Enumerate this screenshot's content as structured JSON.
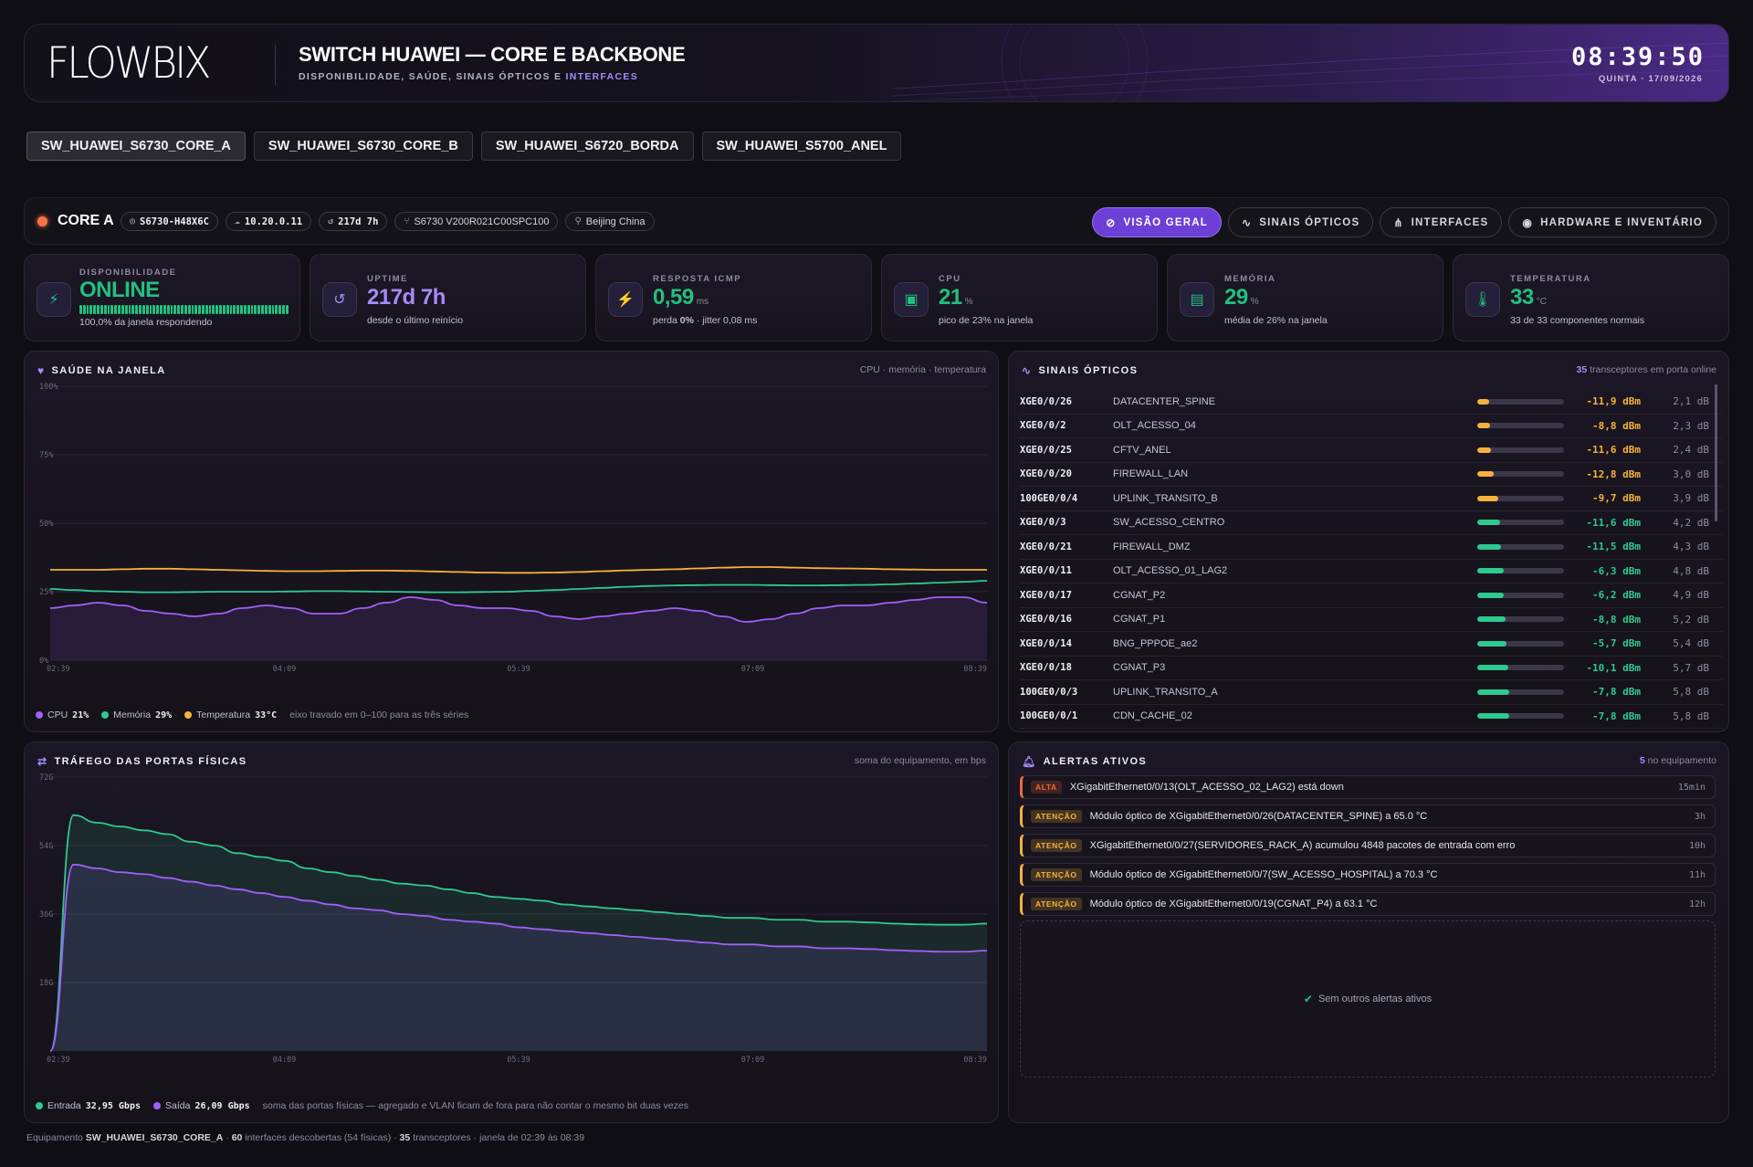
{
  "header": {
    "logo": "FLOWBIX",
    "title": "SWITCH HUAWEI — CORE E BACKBONE",
    "subtitle_prefix": "DISPONIBILIDADE, SAÚDE, SINAIS ÓPTICOS E",
    "subtitle_accent": "INTERFACES",
    "clock": "08:39:50",
    "date": "QUINTA · 17/09/2026"
  },
  "device_tabs": [
    {
      "label": "SW_HUAWEI_S6730_CORE_A",
      "active": true
    },
    {
      "label": "SW_HUAWEI_S6730_CORE_B"
    },
    {
      "label": "SW_HUAWEI_S6720_BORDA"
    },
    {
      "label": "SW_HUAWEI_S5700_ANEL"
    }
  ],
  "device": {
    "name": "CORE A",
    "status_color": "#f97345",
    "model": "S6730-H48X6C",
    "ip": "10.20.0.11",
    "uptime_chip": "217d 7h",
    "firmware": "S6730 V200R021C00SPC100",
    "location": "Beijing China"
  },
  "view_tabs": [
    {
      "label": "VISÃO GERAL",
      "icon": "gauge-icon",
      "active": true
    },
    {
      "label": "SINAIS ÓPTICOS",
      "icon": "pulse-icon"
    },
    {
      "label": "INTERFACES",
      "icon": "network-icon"
    },
    {
      "label": "HARDWARE E INVENTÁRIO",
      "icon": "chip-icon"
    }
  ],
  "kpis": [
    {
      "label": "DISPONIBILIDADE",
      "value": "ONLINE",
      "unit": "",
      "sub": "100,0% da janela respondendo",
      "icon": "plug-icon",
      "color": "#22c07f",
      "availability_fraction": 1.0
    },
    {
      "label": "UPTIME",
      "value": "217d 7h",
      "unit": "",
      "sub": "desde o último reinício",
      "icon": "history-icon",
      "color": "#a78bfa"
    },
    {
      "label": "RESPOSTA ICMP",
      "value": "0,59",
      "unit": "ms",
      "sub_prefix": "perda",
      "sub_bold": "0%",
      "sub": " · jitter 0,08 ms",
      "icon": "bolt-icon",
      "color": "#22c07f"
    },
    {
      "label": "CPU",
      "value": "21",
      "unit": "%",
      "sub": "pico de 23% na janela",
      "icon": "cpu-icon",
      "color": "#22c07f"
    },
    {
      "label": "MEMÓRIA",
      "value": "29",
      "unit": "%",
      "sub": "média de 26% na janela",
      "icon": "memory-icon",
      "color": "#22c07f"
    },
    {
      "label": "TEMPERATURA",
      "value": "33",
      "unit": "°C",
      "sub": "33 de 33 componentes normais",
      "icon": "thermometer-icon",
      "color": "#22c07f"
    }
  ],
  "health_panel": {
    "title": "SAÚDE NA JANELA",
    "right": "CPU · memória · temperatura",
    "legend": [
      {
        "name": "CPU",
        "value": "21%",
        "color": "#a060f8"
      },
      {
        "name": "Memória",
        "value": "29%",
        "color": "#2ec98f"
      },
      {
        "name": "Temperatura",
        "value": "33°C",
        "color": "#f6b23c"
      }
    ],
    "note": "eixo travado em 0–100 para as três séries"
  },
  "traffic_panel": {
    "title": "TRÁFEGO DAS PORTAS FÍSICAS",
    "right": "soma do equipamento, em bps",
    "legend": [
      {
        "name": "Entrada",
        "value": "32,95 Gbps",
        "color": "#2ec98f"
      },
      {
        "name": "Saída",
        "value": "26,09 Gbps",
        "color": "#a060f8"
      }
    ],
    "note": "soma das portas físicas — agregado e VLAN ficam de fora para não contar o mesmo bit duas vezes"
  },
  "chart_data": [
    {
      "type": "line",
      "title": "SAÚDE NA JANELA",
      "x_ticks": [
        "02:39",
        "04:09",
        "05:39",
        "07:09",
        "08:39"
      ],
      "y_ticks": [
        "100%",
        "75%",
        "50%",
        "25%",
        "0%"
      ],
      "ylim": [
        0,
        100
      ],
      "grid": true,
      "series": [
        {
          "name": "CPU",
          "color": "#a060f8",
          "area": true,
          "values": [
            19,
            20,
            21,
            20,
            18,
            17,
            16,
            17,
            19,
            20,
            19,
            17,
            17,
            19,
            21,
            23,
            22,
            20,
            19,
            19,
            18,
            16,
            15,
            16,
            17,
            18,
            19,
            18,
            16,
            14,
            15,
            17,
            19,
            20,
            20,
            21,
            22,
            23,
            23,
            21
          ]
        },
        {
          "name": "Memória",
          "color": "#2ec98f",
          "area": false,
          "values": [
            26,
            25.6,
            25.2,
            25,
            24.8,
            24.8,
            24.9,
            25,
            25,
            25,
            25.1,
            25.2,
            25.2,
            25.1,
            25,
            24.9,
            24.8,
            24.8,
            24.9,
            25,
            25.3,
            25.6,
            26,
            26.4,
            26.8,
            27.1,
            27.3,
            27.4,
            27.5,
            27.5,
            27.4,
            27.3,
            27.3,
            27.4,
            27.5,
            27.7,
            28,
            28.3,
            28.6,
            29
          ]
        },
        {
          "name": "Temperatura",
          "color": "#f6b23c",
          "area": false,
          "values": [
            33,
            33,
            33,
            33.2,
            33.4,
            33.4,
            33.2,
            33,
            32.8,
            32.6,
            32.5,
            32.5,
            32.6,
            32.7,
            32.7,
            32.6,
            32.4,
            32.2,
            32,
            31.9,
            31.9,
            32,
            32.2,
            32.5,
            32.8,
            33,
            33.2,
            33.5,
            33.8,
            34,
            34,
            33.8,
            33.6,
            33.5,
            33.4,
            33.2,
            33.1,
            33,
            33,
            33
          ]
        }
      ]
    },
    {
      "type": "area",
      "title": "TRÁFEGO DAS PORTAS FÍSICAS",
      "x_ticks": [
        "02:39",
        "04:09",
        "05:39",
        "07:09",
        "08:39"
      ],
      "y_ticks": [
        "72G",
        "54G",
        "36G",
        "18G"
      ],
      "ylim": [
        0,
        72
      ],
      "grid": true,
      "series": [
        {
          "name": "Entrada",
          "color": "#2ec98f",
          "values": [
            0,
            62,
            60,
            59,
            58,
            57,
            55,
            54,
            52,
            51,
            50,
            48,
            47,
            46,
            45,
            44,
            43.5,
            42.5,
            41.5,
            40.5,
            40,
            39.5,
            38.5,
            38,
            37.5,
            37,
            36.5,
            36,
            35.5,
            35,
            35,
            34.5,
            34.5,
            34,
            34,
            33.8,
            33.5,
            33.3,
            33.2,
            33.2,
            33.5
          ]
        },
        {
          "name": "Saída",
          "color": "#a060f8",
          "values": [
            0,
            49,
            48,
            47,
            46.5,
            45.5,
            44.5,
            43.5,
            42.5,
            41.5,
            40.5,
            39.5,
            38.5,
            37.5,
            37,
            36,
            35.5,
            34.5,
            34,
            33.5,
            32.5,
            32,
            31.5,
            31,
            30.5,
            30,
            29.5,
            29,
            28.5,
            28,
            28,
            27.5,
            27.5,
            27,
            27,
            26.8,
            26.5,
            26.3,
            26.1,
            26.1,
            26.4
          ]
        }
      ]
    }
  ],
  "optical_panel": {
    "title": "SINAIS ÓPTICOS",
    "count": "35",
    "count_suffix": " transceptores em porta online",
    "rows": [
      {
        "port": "XGE0/0/26",
        "desc": "DATACENTER_SPINE",
        "dbm": "-11,9 dBm",
        "db": "2,1 dB",
        "level": 0.14,
        "status": "warn"
      },
      {
        "port": "XGE0/0/2",
        "desc": "OLT_ACESSO_04",
        "dbm": "-8,8 dBm",
        "db": "2,3 dB",
        "level": 0.15,
        "status": "warn"
      },
      {
        "port": "XGE0/0/25",
        "desc": "CFTV_ANEL",
        "dbm": "-11,6 dBm",
        "db": "2,4 dB",
        "level": 0.16,
        "status": "warn"
      },
      {
        "port": "XGE0/0/20",
        "desc": "FIREWALL_LAN",
        "dbm": "-12,8 dBm",
        "db": "3,0 dB",
        "level": 0.19,
        "status": "warn"
      },
      {
        "port": "100GE0/0/4",
        "desc": "UPLINK_TRANSITO_B",
        "dbm": "-9,7 dBm",
        "db": "3,9 dB",
        "level": 0.24,
        "status": "warn"
      },
      {
        "port": "XGE0/0/3",
        "desc": "SW_ACESSO_CENTRO",
        "dbm": "-11,6 dBm",
        "db": "4,2 dB",
        "level": 0.26,
        "status": "ok"
      },
      {
        "port": "XGE0/0/21",
        "desc": "FIREWALL_DMZ",
        "dbm": "-11,5 dBm",
        "db": "4,3 dB",
        "level": 0.27,
        "status": "ok"
      },
      {
        "port": "XGE0/0/11",
        "desc": "OLT_ACESSO_01_LAG2",
        "dbm": "-6,3 dBm",
        "db": "4,8 dB",
        "level": 0.3,
        "status": "ok"
      },
      {
        "port": "XGE0/0/17",
        "desc": "CGNAT_P2",
        "dbm": "-6,2 dBm",
        "db": "4,9 dB",
        "level": 0.31,
        "status": "ok"
      },
      {
        "port": "XGE0/0/16",
        "desc": "CGNAT_P1",
        "dbm": "-8,8 dBm",
        "db": "5,2 dB",
        "level": 0.33,
        "status": "ok"
      },
      {
        "port": "XGE0/0/14",
        "desc": "BNG_PPPOE_ae2",
        "dbm": "-5,7 dBm",
        "db": "5,4 dB",
        "level": 0.34,
        "status": "ok"
      },
      {
        "port": "XGE0/0/18",
        "desc": "CGNAT_P3",
        "dbm": "-10,1 dBm",
        "db": "5,7 dB",
        "level": 0.36,
        "status": "ok"
      },
      {
        "port": "100GE0/0/3",
        "desc": "UPLINK_TRANSITO_A",
        "dbm": "-7,8 dBm",
        "db": "5,8 dB",
        "level": 0.37,
        "status": "ok"
      },
      {
        "port": "100GE0/0/1",
        "desc": "CDN_CACHE_02",
        "dbm": "-7,8 dBm",
        "db": "5,8 dB",
        "level": 0.37,
        "status": "ok"
      }
    ],
    "colors": {
      "warn": "#f6b23c",
      "ok": "#2ec98f"
    }
  },
  "alerts_panel": {
    "title": "ALERTAS ATIVOS",
    "count": "5",
    "count_suffix": " no equipamento",
    "items": [
      {
        "severity": "ALTA",
        "text": "XGigabitEthernet0/0/13(OLT_ACESSO_02_LAG2) está down",
        "age": "15min",
        "color": "#f0683c"
      },
      {
        "severity": "ATENÇÃO",
        "text": "Módulo óptico de XGigabitEthernet0/0/26(DATACENTER_SPINE) a 65.0 °C",
        "age": "3h",
        "color": "#f6b23c"
      },
      {
        "severity": "ATENÇÃO",
        "text": "XGigabitEthernet0/0/27(SERVIDORES_RACK_A) acumulou 4848 pacotes de entrada com erro",
        "age": "10h",
        "color": "#f6b23c"
      },
      {
        "severity": "ATENÇÃO",
        "text": "Módulo óptico de XGigabitEthernet0/0/7(SW_ACESSO_HOSPITAL) a 70.3 °C",
        "age": "11h",
        "color": "#f6b23c"
      },
      {
        "severity": "ATENÇÃO",
        "text": "Módulo óptico de XGigabitEthernet0/0/19(CGNAT_P4) a 63.1 °C",
        "age": "12h",
        "color": "#f6b23c"
      }
    ],
    "empty_text": "Sem outros alertas ativos"
  },
  "footer": {
    "p1": "Equipamento ",
    "device": "SW_HUAWEI_S6730_CORE_A",
    "p2": " · ",
    "interfaces": "60",
    "p3": " interfaces descobertas (54 físicas) · ",
    "transceivers": "35",
    "p4": " transceptores · janela de 02:39 às 08:39"
  }
}
